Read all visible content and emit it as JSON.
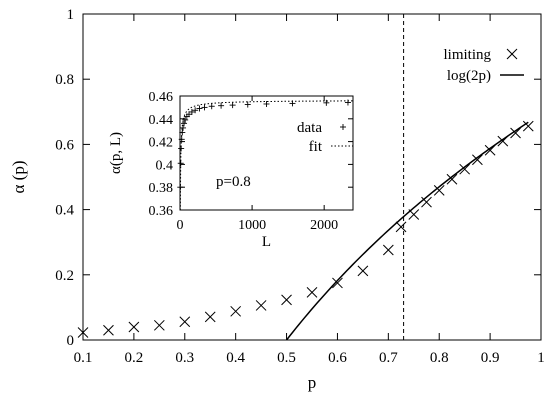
{
  "chart_data": [
    {
      "type": "scatter",
      "xlabel": "p",
      "ylabel": "α (p)",
      "xlim": [
        0.1,
        1.0
      ],
      "ylim": [
        0,
        1.0
      ],
      "x_ticks": [
        "0.1",
        "0.2",
        "0.3",
        "0.4",
        "0.5",
        "0.6",
        "0.7",
        "0.8",
        "0.9",
        "1"
      ],
      "y_ticks": [
        "0",
        "0.2",
        "0.4",
        "0.6",
        "0.8",
        "1"
      ],
      "grid": false,
      "legend_position": "top-right",
      "series": [
        {
          "name": "limiting",
          "marker": "cross",
          "x": [
            0.1,
            0.15,
            0.2,
            0.25,
            0.3,
            0.35,
            0.4,
            0.45,
            0.5,
            0.55,
            0.6,
            0.65,
            0.7,
            0.725,
            0.75,
            0.775,
            0.8,
            0.825,
            0.85,
            0.875,
            0.9,
            0.925,
            0.95,
            0.975
          ],
          "y": [
            0.023,
            0.03,
            0.04,
            0.045,
            0.056,
            0.071,
            0.088,
            0.106,
            0.123,
            0.146,
            0.175,
            0.212,
            0.276,
            0.347,
            0.385,
            0.423,
            0.459,
            0.493,
            0.524,
            0.553,
            0.582,
            0.61,
            0.635,
            0.656
          ]
        },
        {
          "name": "log(2p)",
          "style": "solid-line",
          "function": "log(2p)",
          "x_range": [
            0.5,
            0.975
          ]
        }
      ],
      "vertical_line": {
        "x": 0.73,
        "style": "dashed"
      }
    },
    {
      "type": "scatter",
      "xlabel": "L",
      "ylabel": "α(p, L)",
      "xlim": [
        0,
        2400
      ],
      "ylim": [
        0.36,
        0.46
      ],
      "x_ticks": [
        "0",
        "1000",
        "2000"
      ],
      "y_ticks": [
        "0.36",
        "0.38",
        "0.4",
        "0.42",
        "0.44",
        "0.46"
      ],
      "annotation": "p=0.8",
      "legend_position": "right",
      "series": [
        {
          "name": "data",
          "marker": "plus",
          "x": [
            4,
            10,
            16,
            24,
            32,
            42,
            56,
            72,
            95,
            125,
            165,
            210,
            270,
            340,
            440,
            570,
            730,
            940,
            1200,
            1560,
            2030,
            2330
          ],
          "y": [
            0.38,
            0.401,
            0.414,
            0.422,
            0.428,
            0.432,
            0.436,
            0.439,
            0.442,
            0.444,
            0.446,
            0.4475,
            0.449,
            0.45,
            0.451,
            0.4515,
            0.452,
            0.4525,
            0.453,
            0.4535,
            0.454,
            0.4543
          ]
        },
        {
          "name": "fit",
          "style": "dotted-line",
          "a": 0.4565,
          "b": 0.34,
          "c": 0.78
        }
      ]
    }
  ]
}
